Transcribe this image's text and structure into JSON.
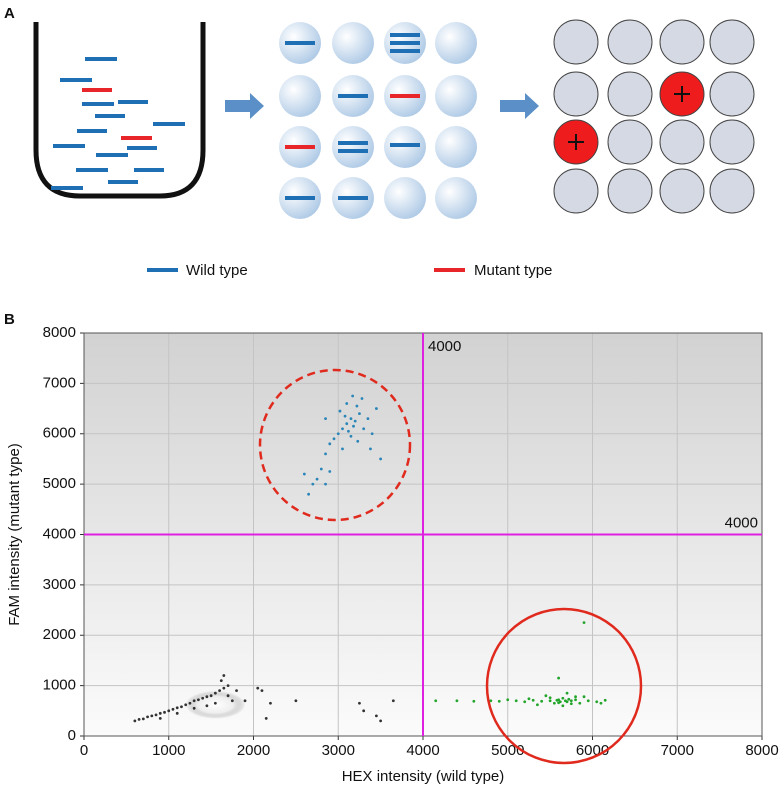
{
  "panel_a": {
    "label": "A",
    "legend": [
      {
        "label": "Wild type",
        "color": "#1f6fb5"
      },
      {
        "label": "Mutant type",
        "color": "#e8262a"
      }
    ]
  },
  "panel_b_label": "B",
  "chart_data": {
    "type": "scatter",
    "x_label": "HEX intensity (wild type)",
    "y_label": "FAM intensity (mutant type)",
    "xlim": [
      0,
      8000
    ],
    "ylim": [
      0,
      8000
    ],
    "xticks": [
      0,
      1000,
      2000,
      3000,
      4000,
      5000,
      6000,
      7000,
      8000
    ],
    "yticks": [
      0,
      1000,
      2000,
      3000,
      4000,
      5000,
      6000,
      7000,
      8000
    ],
    "grid": true,
    "x_threshold": 4000,
    "y_threshold": 4000,
    "threshold_color": "#e020e0",
    "series": [
      {
        "color": "#2a86b8",
        "x": [
          3100,
          3150,
          3050,
          3200,
          3120,
          3000,
          3250,
          3180,
          3080,
          3220,
          3300,
          3350,
          2950,
          2900,
          3020,
          3150,
          3400,
          3450,
          3100,
          3170,
          3280,
          2850,
          2800,
          2900,
          2750,
          2700,
          2650,
          2850,
          3050,
          3500,
          3380,
          2600,
          2850,
          3230
        ],
        "y": [
          6200,
          6300,
          6100,
          6250,
          6050,
          6000,
          6400,
          6150,
          6350,
          6550,
          6100,
          6300,
          5900,
          5800,
          6450,
          5950,
          6000,
          6500,
          6600,
          6750,
          6700,
          5600,
          5300,
          5250,
          5100,
          5000,
          4800,
          5000,
          5700,
          5500,
          5700,
          5200,
          6300,
          5850
        ]
      },
      {
        "color": "#22a52a",
        "x": [
          5500,
          5600,
          5700,
          5650,
          5550,
          5750,
          5800,
          5400,
          5300,
          5200,
          5100,
          5000,
          4900,
          5850,
          5950,
          6050,
          6150,
          5900,
          5450,
          5350,
          5650,
          5700,
          5600,
          5500,
          5750,
          5800,
          5250,
          6100,
          4800,
          4600,
          4400,
          4150,
          5900,
          5600,
          5680,
          5620,
          5720,
          5580
        ],
        "y": [
          700,
          720,
          680,
          750,
          650,
          700,
          720,
          690,
          710,
          680,
          700,
          720,
          690,
          650,
          700,
          680,
          710,
          780,
          800,
          620,
          600,
          850,
          660,
          760,
          640,
          780,
          740,
          650,
          700,
          690,
          700,
          700,
          2250,
          1150,
          700,
          680,
          730,
          710
        ]
      },
      {
        "color": "#333333",
        "x": [
          600,
          650,
          700,
          750,
          800,
          850,
          900,
          950,
          1000,
          1050,
          1100,
          1150,
          1200,
          1250,
          1300,
          1350,
          1400,
          1450,
          1500,
          1550,
          1600,
          1650,
          1700,
          1650,
          1620,
          1550,
          1450,
          1700,
          1750,
          1800,
          1900,
          2050,
          2100,
          2150,
          2200,
          2500,
          3300,
          3450,
          3500,
          3650,
          3250,
          900,
          1100,
          1300
        ],
        "y": [
          300,
          330,
          340,
          380,
          400,
          420,
          450,
          470,
          500,
          530,
          560,
          580,
          620,
          650,
          700,
          720,
          750,
          780,
          800,
          850,
          900,
          950,
          1000,
          1200,
          1100,
          650,
          600,
          800,
          700,
          900,
          700,
          950,
          900,
          350,
          650,
          700,
          500,
          400,
          300,
          700,
          650,
          350,
          450,
          550
        ]
      }
    ]
  }
}
